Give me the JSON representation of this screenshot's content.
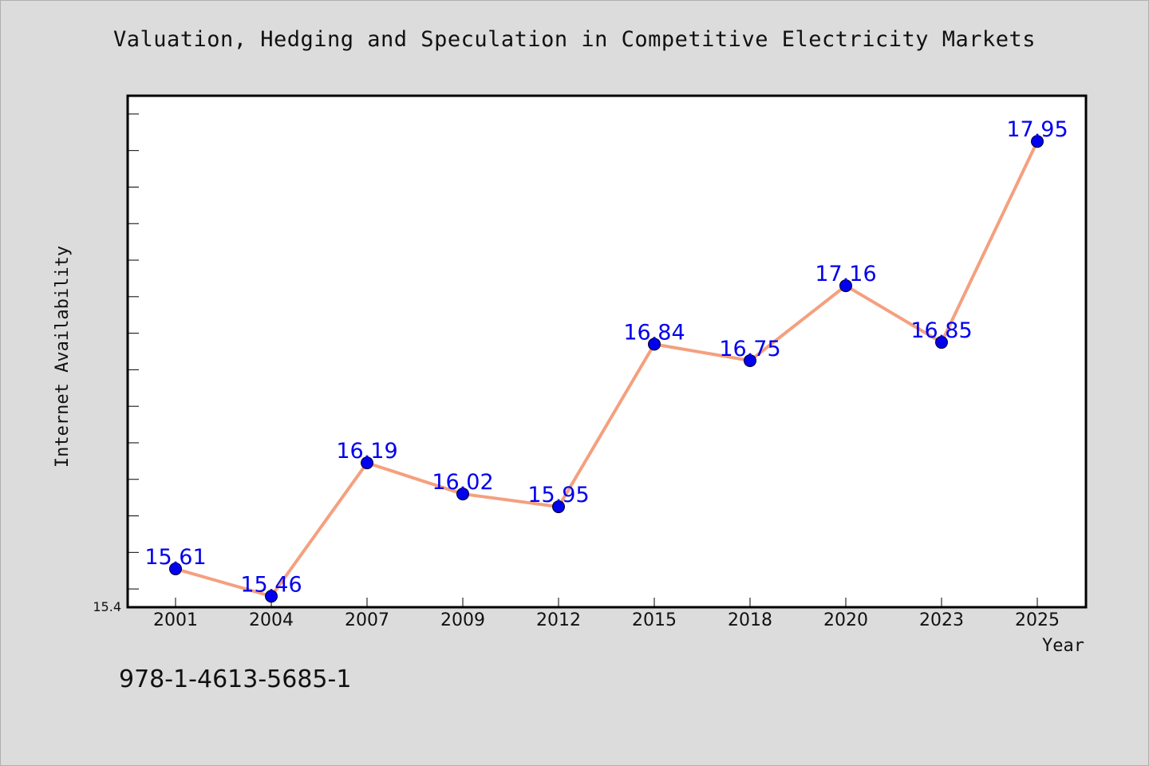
{
  "chart_data": {
    "type": "line",
    "title": "Valuation, Hedging and Speculation in Competitive Electricity Markets",
    "xlabel": "Year",
    "ylabel": "Internet Availability",
    "categories": [
      "2001",
      "2004",
      "2007",
      "2009",
      "2012",
      "2015",
      "2018",
      "2020",
      "2023",
      "2025"
    ],
    "values": [
      15.61,
      15.46,
      16.19,
      16.02,
      15.95,
      16.84,
      16.75,
      17.16,
      16.85,
      17.95
    ],
    "data_labels": [
      "15.61",
      "15.46",
      "16.19",
      "16.02",
      "15.95",
      "16.84",
      "16.75",
      "17.16",
      "16.85",
      "17.95"
    ],
    "ylim": [
      15.4,
      18.2
    ],
    "y_min_label": "15.4",
    "grid": false,
    "legend": "none",
    "line_color": "#f4a07f",
    "marker_color": "#0000ee",
    "label_color": "#0000ee",
    "plot_background": "#ffffff",
    "page_background": "#dcdcdc"
  },
  "footer": {
    "isbn": "978-1-4613-5685-1"
  }
}
